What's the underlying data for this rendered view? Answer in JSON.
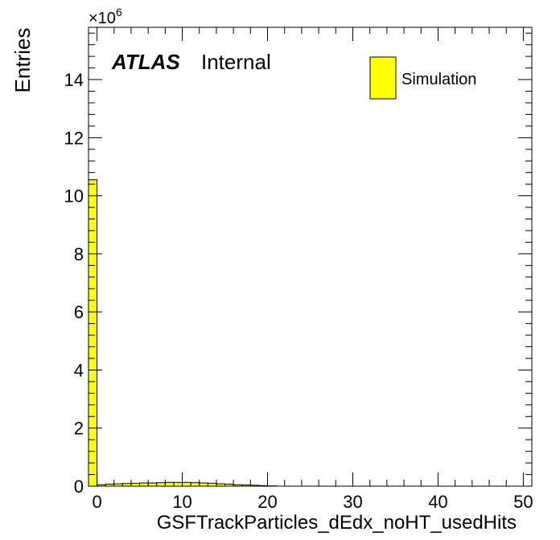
{
  "chart_data": {
    "type": "bar",
    "xlabel": "GSFTrackParticles_dEdx_noHT_usedHits",
    "ylabel": "Entries",
    "y_multiplier": "×10",
    "y_multiplier_exp": "6",
    "xlim": [
      -1,
      51
    ],
    "ylim": [
      0,
      15.8
    ],
    "x_ticks": [
      0,
      10,
      20,
      30,
      40,
      50
    ],
    "y_ticks": [
      0,
      2,
      4,
      6,
      8,
      10,
      12,
      14
    ],
    "bin_width": 1,
    "bin_low_edges": [
      -1,
      0,
      1,
      2,
      3,
      4,
      5,
      6,
      7,
      8,
      9,
      10,
      11,
      12,
      13,
      14,
      15,
      16,
      17,
      18,
      19,
      20
    ],
    "series": [
      {
        "name": "Simulation",
        "color": "#ffff00",
        "values": [
          10.55,
          0.05,
          0.07,
          0.08,
          0.09,
          0.1,
          0.11,
          0.11,
          0.12,
          0.13,
          0.13,
          0.13,
          0.12,
          0.11,
          0.1,
          0.08,
          0.07,
          0.05,
          0.04,
          0.03,
          0.02,
          0.01
        ]
      }
    ],
    "legend_position": "top-right",
    "grid": false
  },
  "labels": {
    "atlas": "ATLAS",
    "internal": "Internal"
  }
}
